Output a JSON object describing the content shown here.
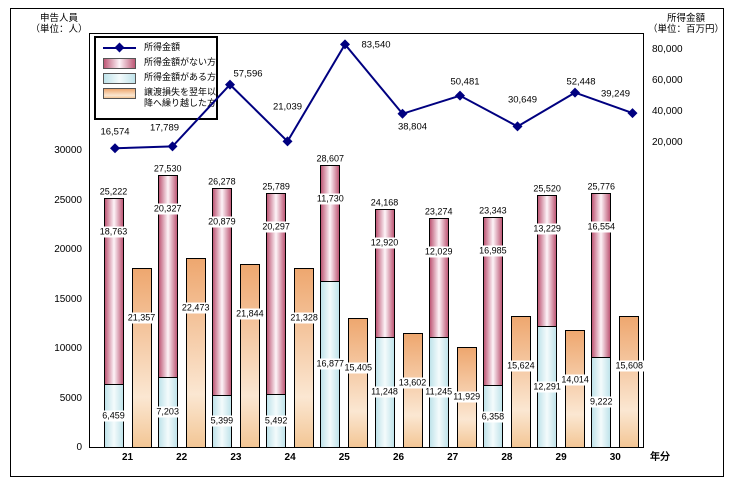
{
  "chart_data": {
    "type": "bar",
    "subtype": "stacked-bars-with-line",
    "categories": [
      "21",
      "22",
      "23",
      "24",
      "25",
      "26",
      "27",
      "28",
      "29",
      "30"
    ],
    "x_axis": {
      "unit_label": "年分"
    },
    "left_axis": {
      "title": "申告人員",
      "unit": "（単位：人）",
      "tick_labels": [
        "0",
        "5000",
        "10000",
        "15000",
        "20000",
        "25000",
        "30000"
      ],
      "tick_values": [
        0,
        5000,
        10000,
        15000,
        20000,
        25000,
        30000
      ],
      "max": 30000
    },
    "right_axis": {
      "title": "所得金額",
      "unit": "（単位：百万円）",
      "tick_labels": [
        "20,000",
        "40,000",
        "60,000",
        "80,000"
      ],
      "tick_values": [
        20000,
        40000,
        60000,
        80000
      ]
    },
    "series": [
      {
        "key": "line",
        "name": "所得金額",
        "type": "line",
        "axis": "right",
        "values": [
          16574,
          17789,
          57596,
          21039,
          83540,
          38804,
          50481,
          30649,
          52448,
          39249
        ]
      },
      {
        "key": "pink",
        "name": "所得金額がない方",
        "type": "bar-stacked-top",
        "axis": "left",
        "values": [
          18763,
          20327,
          20879,
          20297,
          11730,
          12920,
          12029,
          16985,
          13229,
          16554
        ]
      },
      {
        "key": "blue",
        "name": "所得金額がある方",
        "type": "bar-stacked-bottom",
        "axis": "left",
        "values": [
          6459,
          7203,
          5399,
          5492,
          16877,
          11248,
          11245,
          6358,
          12291,
          9222
        ]
      },
      {
        "key": "orange",
        "name": "譲渡損失を翌年以降へ繰り越した方",
        "type": "bar",
        "axis": "left",
        "values": [
          21357,
          22473,
          21844,
          21328,
          15405,
          13602,
          11929,
          15624,
          14014,
          15608
        ]
      }
    ],
    "stacked_totals": [
      25222,
      27530,
      26278,
      25789,
      28607,
      24168,
      23274,
      23343,
      25520,
      25776
    ],
    "legend": [
      {
        "key": "line",
        "label": "所得金額"
      },
      {
        "key": "pink",
        "label": "所得金額がない方"
      },
      {
        "key": "blue",
        "label": "所得金額がある方"
      },
      {
        "key": "orange",
        "label": "譲渡損失を翌年以降へ繰り越した方"
      }
    ],
    "colors": {
      "line": "#000080",
      "pink_edge": "#BE5876",
      "blue_edge": "#BFE3EA",
      "orange_top": "#EEA76F"
    },
    "legend_position": "top-left-inside",
    "grid": false
  }
}
